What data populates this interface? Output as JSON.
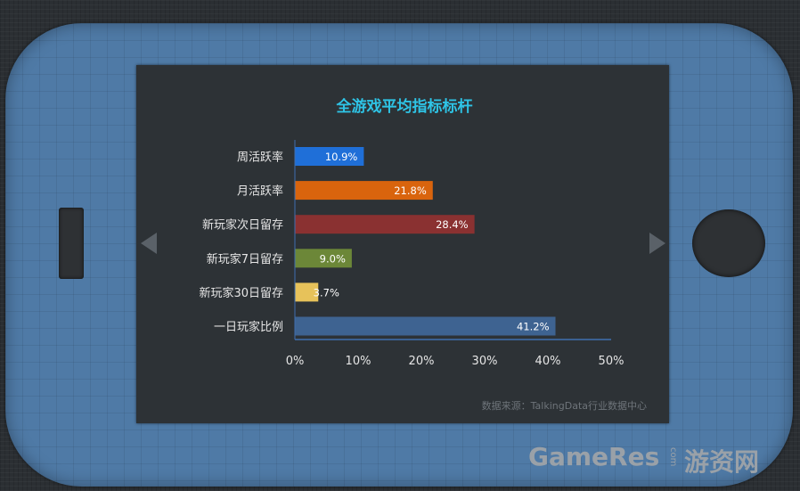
{
  "chart_data": {
    "type": "bar",
    "orientation": "horizontal",
    "title": "全游戏平均指标标杆",
    "categories": [
      "周活跃率",
      "月活跃率",
      "新玩家次日留存",
      "新玩家7日留存",
      "新玩家30日留存",
      "一日玩家比例"
    ],
    "values": [
      10.9,
      21.8,
      28.4,
      9.0,
      3.7,
      41.2
    ],
    "value_labels": [
      "10.9%",
      "21.8%",
      "28.4%",
      "9.0%",
      "3.7%",
      "41.2%"
    ],
    "colors": [
      "#1f6fd8",
      "#d9640d",
      "#8a3131",
      "#6c8738",
      "#e7c25a",
      "#3e6391"
    ],
    "xlim": [
      0,
      50
    ],
    "x_ticks": [
      "0%",
      "10%",
      "20%",
      "30%",
      "40%",
      "50%"
    ],
    "grid": false,
    "source": "数据来源：TalkingData行业数据中心"
  },
  "watermark": {
    "brand": "GameRes",
    "domain_suffix": "com",
    "cn": "游资网"
  }
}
